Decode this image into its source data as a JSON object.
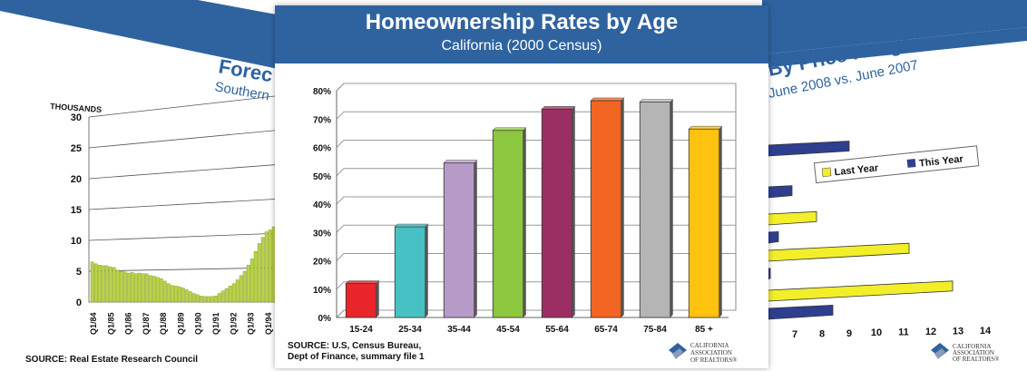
{
  "center": {
    "title": "Homeownership Rates by Age",
    "subtitle": "California (2000 Census)",
    "source_line1": "SOURCE: U.S, Census Bureau,",
    "source_line2": "Dept of Finance, summary  file 1"
  },
  "left": {
    "title_fragment": "Forec",
    "subtitle_fragment": "Southern",
    "ylabel": "THOUSANDS",
    "source": "SOURCE: Real Estate Research Council",
    "bar_color": "#b9d24a"
  },
  "right": {
    "title_fragment": "By Price Range",
    "subtitle_fragment": "June 2008 vs. June 2007",
    "legend": [
      "Last Year",
      "This Year"
    ],
    "colors": {
      "last_year": "#f2ee2a",
      "this_year": "#2e3f8f"
    }
  },
  "logo": [
    "CALIFORNIA",
    "ASSOCIATION",
    "OF REALTORS®"
  ],
  "colors": {
    "banner": "#2f63a0"
  },
  "chart_data": [
    {
      "type": "bar",
      "title": "Homeownership Rates by Age",
      "subtitle": "California (2000 Census)",
      "categories": [
        "15-24",
        "25-34",
        "35-44",
        "45-54",
        "55-64",
        "65-74",
        "75-84",
        "85 +"
      ],
      "values": [
        12,
        32,
        54.5,
        66,
        73.5,
        76.5,
        76,
        66.5
      ],
      "colors": [
        "#e8262b",
        "#48c1c4",
        "#b69bc9",
        "#8dc63f",
        "#9b2f63",
        "#f26522",
        "#b5b5b5",
        "#ffc20e"
      ],
      "yticks": [
        "0%",
        "10%",
        "20%",
        "30%",
        "40%",
        "50%",
        "60%",
        "70%",
        "80%"
      ],
      "ylim": [
        0,
        80
      ],
      "grid": true
    },
    {
      "type": "bar",
      "title": "Forec",
      "ylabel": "THOUSANDS",
      "yticks": [
        "0",
        "5",
        "10",
        "15",
        "20",
        "25",
        "30"
      ],
      "ylim": [
        0,
        30
      ],
      "xticks": [
        "Q1/84",
        "Q1/85",
        "Q1/86",
        "Q1/87",
        "Q1/88",
        "Q1/89",
        "Q1/90",
        "Q1/91",
        "Q1/92",
        "Q1/93",
        "Q1/94"
      ],
      "values": [
        6.5,
        6.2,
        6.0,
        5.9,
        5.9,
        5.7,
        5.6,
        5.2,
        5.0,
        4.9,
        4.7,
        4.8,
        4.6,
        4.7,
        4.6,
        4.6,
        4.3,
        4.2,
        4.0,
        3.8,
        3.4,
        3.0,
        2.7,
        2.6,
        2.5,
        2.3,
        2.0,
        1.7,
        1.4,
        1.2,
        1.0,
        0.9,
        0.9,
        0.9,
        1.0,
        1.4,
        1.8,
        2.2,
        2.6,
        3.0,
        3.6,
        4.3,
        5.0,
        6.0,
        7.0,
        8.2,
        9.5,
        10.5,
        11.4,
        11.7,
        12.2,
        12.5
      ]
    },
    {
      "type": "bar",
      "title": "By Price Range",
      "subtitle": "June 2008 vs. June 2007",
      "legend": [
        "Last Year",
        "This Year"
      ],
      "xticks": [
        "7",
        "8",
        "9",
        "10",
        "11",
        "12",
        "13",
        "14"
      ],
      "series": [
        {
          "name": "Last Year",
          "values": [
            null,
            7.8,
            11.2,
            12.8
          ]
        },
        {
          "name": "This Year",
          "values": [
            9.0,
            6.9,
            null,
            8.4
          ]
        }
      ]
    }
  ]
}
